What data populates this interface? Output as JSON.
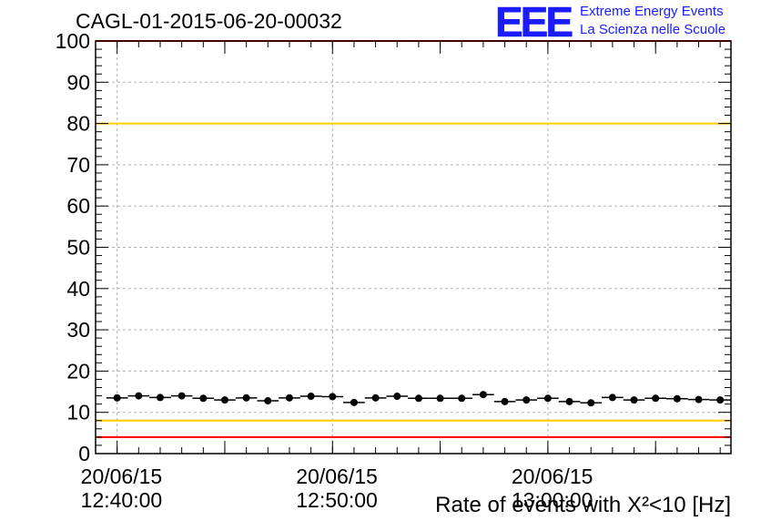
{
  "header": {
    "title": "CAGL-01-2015-06-20-00032",
    "logo_text": "EEE",
    "logo_line1": "Extreme Energy Events",
    "logo_line2": "La Scienza nelle Scuole",
    "logo_color": "#1b1bff"
  },
  "chart_data": {
    "type": "scatter",
    "title": "CAGL-01-2015-06-20-00032",
    "xlabel": "Rate of events with X²<10 [Hz]",
    "ylabel": "",
    "ylim": [
      0,
      100
    ],
    "xlim": [
      "2015-06-20 12:39:00",
      "2015-06-20 13:08:30"
    ],
    "x_ticks": [
      {
        "at": "2015-06-20 12:40:00",
        "line1": "20/06/15",
        "line2": "12:40:00"
      },
      {
        "at": "2015-06-20 12:50:00",
        "line1": "20/06/15",
        "line2": "12:50:00"
      },
      {
        "at": "2015-06-20 13:00:00",
        "line1": "20/06/15",
        "line2": "13:00:00"
      }
    ],
    "y_ticks": [
      0,
      10,
      20,
      30,
      40,
      50,
      60,
      70,
      80,
      90,
      100
    ],
    "grid": true,
    "reference_lines": [
      {
        "y": 100,
        "color": "#ff0000"
      },
      {
        "y": 80,
        "color": "#ffcc00"
      },
      {
        "y": 8,
        "color": "#ffcc00"
      },
      {
        "y": 4,
        "color": "#ff0000"
      }
    ],
    "series": [
      {
        "marker_color": "#000000",
        "x": [
          "12:40:00",
          "12:41:00",
          "12:42:00",
          "12:43:00",
          "12:44:00",
          "12:45:00",
          "12:46:00",
          "12:47:00",
          "12:48:00",
          "12:49:00",
          "12:50:00",
          "12:51:00",
          "12:52:00",
          "12:53:00",
          "12:54:00",
          "12:55:00",
          "12:56:00",
          "12:57:00",
          "12:58:00",
          "12:59:00",
          "13:00:00",
          "13:01:00",
          "13:02:00",
          "13:03:00",
          "13:04:00",
          "13:05:00",
          "13:06:00",
          "13:07:00",
          "13:08:00"
        ],
        "y": [
          13.5,
          14.0,
          13.6,
          14.0,
          13.4,
          13.0,
          13.5,
          12.8,
          13.5,
          13.9,
          13.8,
          12.4,
          13.5,
          13.9,
          13.4,
          13.4,
          13.4,
          14.3,
          12.6,
          13.0,
          13.4,
          12.6,
          12.3,
          13.6,
          13.0,
          13.4,
          13.3,
          13.1,
          13.0
        ]
      }
    ]
  }
}
